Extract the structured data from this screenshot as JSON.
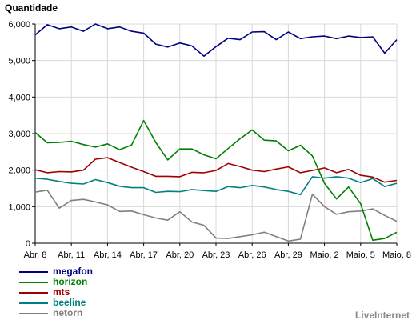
{
  "chart_data": {
    "type": "line",
    "ylabel": "Quantidade",
    "xlabel": "",
    "ylim": [
      0,
      6000
    ],
    "yticks": [
      "0",
      "1,000",
      "2,000",
      "3,000",
      "4,000",
      "5,000",
      "6,000"
    ],
    "categories": [
      "Abr, 8",
      "",
      "",
      "Abr, 11",
      "",
      "",
      "Abr, 14",
      "",
      "",
      "Abr, 17",
      "",
      "",
      "Abr, 20",
      "",
      "",
      "Abr, 23",
      "",
      "",
      "Abr, 26",
      "",
      "",
      "Abr, 29",
      "",
      "",
      "Maio, 2",
      "",
      "",
      "Maio, 5",
      "",
      "",
      "Maio, 8"
    ],
    "grid": true,
    "legend_position": "bottom-left",
    "series": [
      {
        "name": "megafon",
        "color": "#000080",
        "values": [
          5700,
          5980,
          5870,
          5920,
          5800,
          6000,
          5870,
          5920,
          5800,
          5750,
          5450,
          5370,
          5480,
          5400,
          5120,
          5380,
          5610,
          5570,
          5780,
          5790,
          5570,
          5780,
          5600,
          5650,
          5670,
          5600,
          5670,
          5630,
          5650,
          5200,
          5570
        ]
      },
      {
        "name": "horizon",
        "color": "#008000",
        "values": [
          3030,
          2750,
          2760,
          2790,
          2700,
          2630,
          2720,
          2560,
          2690,
          3360,
          2760,
          2280,
          2580,
          2580,
          2420,
          2310,
          2590,
          2860,
          3100,
          2820,
          2800,
          2530,
          2680,
          2390,
          1640,
          1210,
          1540,
          1080,
          80,
          130,
          300
        ]
      },
      {
        "name": "mts",
        "color": "#a00000",
        "values": [
          2010,
          1930,
          1960,
          1950,
          2000,
          2300,
          2340,
          2210,
          2080,
          1960,
          1830,
          1830,
          1820,
          1940,
          1930,
          1990,
          2180,
          2100,
          2000,
          1960,
          2030,
          2090,
          1930,
          1990,
          2060,
          1930,
          2020,
          1860,
          1810,
          1670,
          1720
        ]
      },
      {
        "name": "beeline",
        "color": "#008080",
        "values": [
          1780,
          1750,
          1690,
          1640,
          1620,
          1740,
          1660,
          1560,
          1520,
          1520,
          1390,
          1420,
          1410,
          1470,
          1440,
          1420,
          1550,
          1520,
          1580,
          1540,
          1470,
          1420,
          1330,
          1820,
          1780,
          1820,
          1780,
          1660,
          1770,
          1550,
          1640
        ]
      },
      {
        "name": "netorn",
        "color": "#808080",
        "values": [
          1400,
          1450,
          960,
          1170,
          1200,
          1130,
          1050,
          870,
          880,
          780,
          690,
          630,
          860,
          580,
          490,
          140,
          130,
          180,
          230,
          300,
          180,
          60,
          110,
          1340,
          1000,
          790,
          860,
          880,
          940,
          760,
          600
        ]
      }
    ]
  },
  "watermark": "LiveInternet"
}
